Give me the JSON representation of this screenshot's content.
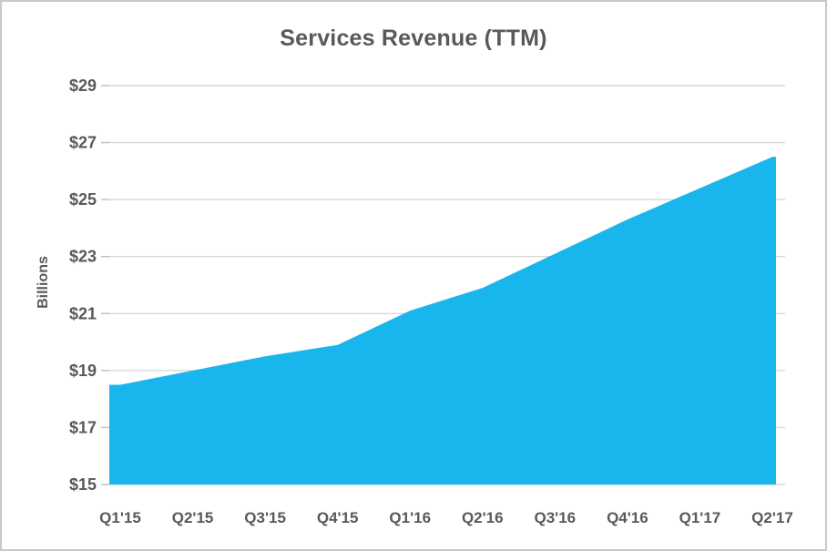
{
  "chart_data": {
    "type": "area",
    "title": "Services Revenue (TTM)",
    "ylabel": "Billions",
    "xlabel": "",
    "categories": [
      "Q1'15",
      "Q2'15",
      "Q3'15",
      "Q4'15",
      "Q1'16",
      "Q2'16",
      "Q3'16",
      "Q4'16",
      "Q1'17",
      "Q2'17"
    ],
    "values": [
      18.5,
      19.0,
      19.5,
      19.9,
      21.1,
      21.9,
      23.1,
      24.3,
      25.4,
      26.5
    ],
    "ylim": [
      15,
      29
    ],
    "ytick_values": [
      15,
      17,
      19,
      21,
      23,
      25,
      27,
      29
    ],
    "ytick_labels": [
      "$15",
      "$17",
      "$19",
      "$21",
      "$23",
      "$25",
      "$27",
      "$29"
    ],
    "grid": "horizontal",
    "legend": "none",
    "colors": {
      "area": "#18B6EC",
      "text": "#595959",
      "gridline": "#D9D9D9",
      "tick": "#BFBFBF",
      "border": "#C9C9C9"
    }
  }
}
